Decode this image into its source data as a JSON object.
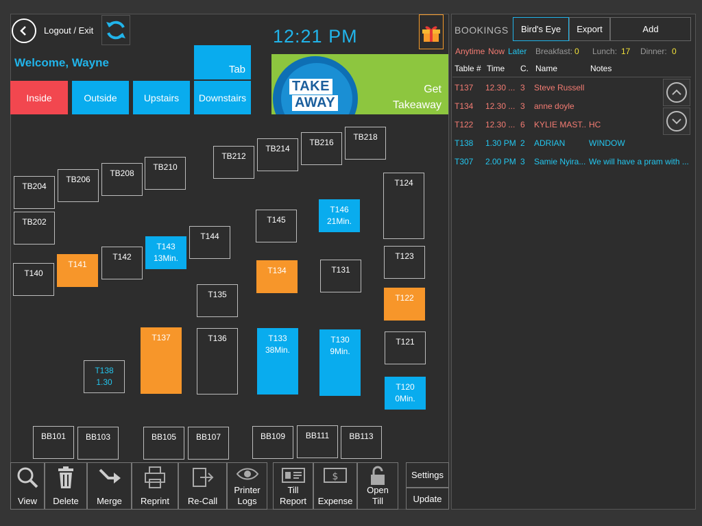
{
  "header": {
    "logout_label": "Logout / Exit",
    "clock": "12:21 PM",
    "welcome": "Welcome, Wayne"
  },
  "areas": {
    "tab": "Tab",
    "inside": "Inside",
    "outside": "Outside",
    "upstairs": "Upstairs",
    "downstairs": "Downstairs"
  },
  "takeaway": {
    "logo_line1": "TAKE",
    "logo_line2": "AWAY",
    "label_line1": "Get",
    "label_line2": "Takeaway"
  },
  "tables": [
    {
      "id": "TB204",
      "name": "TB204",
      "status": "",
      "state": "free"
    },
    {
      "id": "TB206",
      "name": "TB206",
      "status": "",
      "state": "free"
    },
    {
      "id": "TB208",
      "name": "TB208",
      "status": "",
      "state": "free"
    },
    {
      "id": "TB210",
      "name": "TB210",
      "status": "",
      "state": "free"
    },
    {
      "id": "TB212",
      "name": "TB212",
      "status": "",
      "state": "free"
    },
    {
      "id": "TB214",
      "name": "TB214",
      "status": "",
      "state": "free"
    },
    {
      "id": "TB216",
      "name": "TB216",
      "status": "",
      "state": "free"
    },
    {
      "id": "TB218",
      "name": "TB218",
      "status": "",
      "state": "free"
    },
    {
      "id": "TB202",
      "name": "TB202",
      "status": "",
      "state": "free"
    },
    {
      "id": "T124",
      "name": "T124",
      "status": "",
      "state": "free"
    },
    {
      "id": "T146",
      "name": "T146",
      "status": "21Min.",
      "state": "occupied"
    },
    {
      "id": "T145",
      "name": "T145",
      "status": "",
      "state": "free"
    },
    {
      "id": "T144",
      "name": "T144",
      "status": "",
      "state": "free"
    },
    {
      "id": "T143",
      "name": "T143",
      "status": "13Min.",
      "state": "occupied"
    },
    {
      "id": "T142",
      "name": "T142",
      "status": "",
      "state": "free"
    },
    {
      "id": "T141",
      "name": "T141",
      "status": "",
      "state": "booked"
    },
    {
      "id": "T140",
      "name": "T140",
      "status": "",
      "state": "free"
    },
    {
      "id": "T134",
      "name": "T134",
      "status": "",
      "state": "booked"
    },
    {
      "id": "T131",
      "name": "T131",
      "status": "",
      "state": "free"
    },
    {
      "id": "T123",
      "name": "T123",
      "status": "",
      "state": "free"
    },
    {
      "id": "T135",
      "name": "T135",
      "status": "",
      "state": "free"
    },
    {
      "id": "T122",
      "name": "T122",
      "status": "",
      "state": "booked"
    },
    {
      "id": "T137",
      "name": "T137",
      "status": "",
      "state": "booked"
    },
    {
      "id": "T136",
      "name": "T136",
      "status": "",
      "state": "free"
    },
    {
      "id": "T133",
      "name": "T133",
      "status": "38Min.",
      "state": "occupied"
    },
    {
      "id": "T130",
      "name": "T130",
      "status": "9Min.",
      "state": "occupied"
    },
    {
      "id": "T121",
      "name": "T121",
      "status": "",
      "state": "free"
    },
    {
      "id": "T138",
      "name": "T138",
      "status": "1.30",
      "state": "upcoming"
    },
    {
      "id": "T120",
      "name": "T120",
      "status": "0Min.",
      "state": "occupied"
    },
    {
      "id": "BB101",
      "name": "BB101",
      "status": "",
      "state": "free"
    },
    {
      "id": "BB103",
      "name": "BB103",
      "status": "",
      "state": "free"
    },
    {
      "id": "BB105",
      "name": "BB105",
      "status": "",
      "state": "free"
    },
    {
      "id": "BB107",
      "name": "BB107",
      "status": "",
      "state": "free"
    },
    {
      "id": "BB109",
      "name": "BB109",
      "status": "",
      "state": "free"
    },
    {
      "id": "BB111",
      "name": "BB111",
      "status": "",
      "state": "free"
    },
    {
      "id": "BB113",
      "name": "BB113",
      "status": "",
      "state": "free"
    }
  ],
  "toolbar": {
    "view": "View",
    "delete": "Delete",
    "merge": "Merge",
    "reprint": "Reprint",
    "recall": "Re-Call",
    "printer_logs_1": "Printer",
    "printer_logs_2": "Logs",
    "till_report_1": "Till",
    "till_report_2": "Report",
    "expense": "Expense",
    "open_till_1": "Open",
    "open_till_2": "Till",
    "settings": "Settings",
    "update": "Update"
  },
  "bookings": {
    "title": "BOOKINGS",
    "birds_eye": "Bird's Eye",
    "export": "Export",
    "add": "Add",
    "filters": {
      "anytime": "Anytime",
      "now": "Now",
      "later": "Later",
      "breakfast_label": "Breakfast:",
      "breakfast_count": "0",
      "lunch_label": "Lunch:",
      "lunch_count": "17",
      "dinner_label": "Dinner:",
      "dinner_count": "0"
    },
    "columns": {
      "table": "Table #",
      "time": "Time",
      "covers": "C.",
      "name": "Name",
      "notes": "Notes"
    },
    "rows": [
      {
        "table": "T137",
        "time": "12.30 ...",
        "covers": "3",
        "name": "Steve Russell",
        "notes": "",
        "color": "#f47c73"
      },
      {
        "table": "T134",
        "time": "12.30 ...",
        "covers": "3",
        "name": "anne doyle",
        "notes": "",
        "color": "#f47c73"
      },
      {
        "table": "T122",
        "time": "12.30 ...",
        "covers": "6",
        "name": "KYLIE MAST...",
        "notes": "HC",
        "color": "#f47c73"
      },
      {
        "table": "T138",
        "time": "1.30 PM",
        "covers": "2",
        "name": "ADRIAN",
        "notes": "WINDOW",
        "color": "#23c6ef"
      },
      {
        "table": "T307",
        "time": "2.00 PM",
        "covers": "3",
        "name": "Samie Nyira...",
        "notes": "We will have a pram with ...",
        "color": "#23c6ef"
      }
    ]
  },
  "colors": {
    "accent_blue": "#09acee",
    "booked_orange": "#f7962a",
    "inside_red": "#f2474f",
    "takeaway_green": "#8dc63f"
  }
}
